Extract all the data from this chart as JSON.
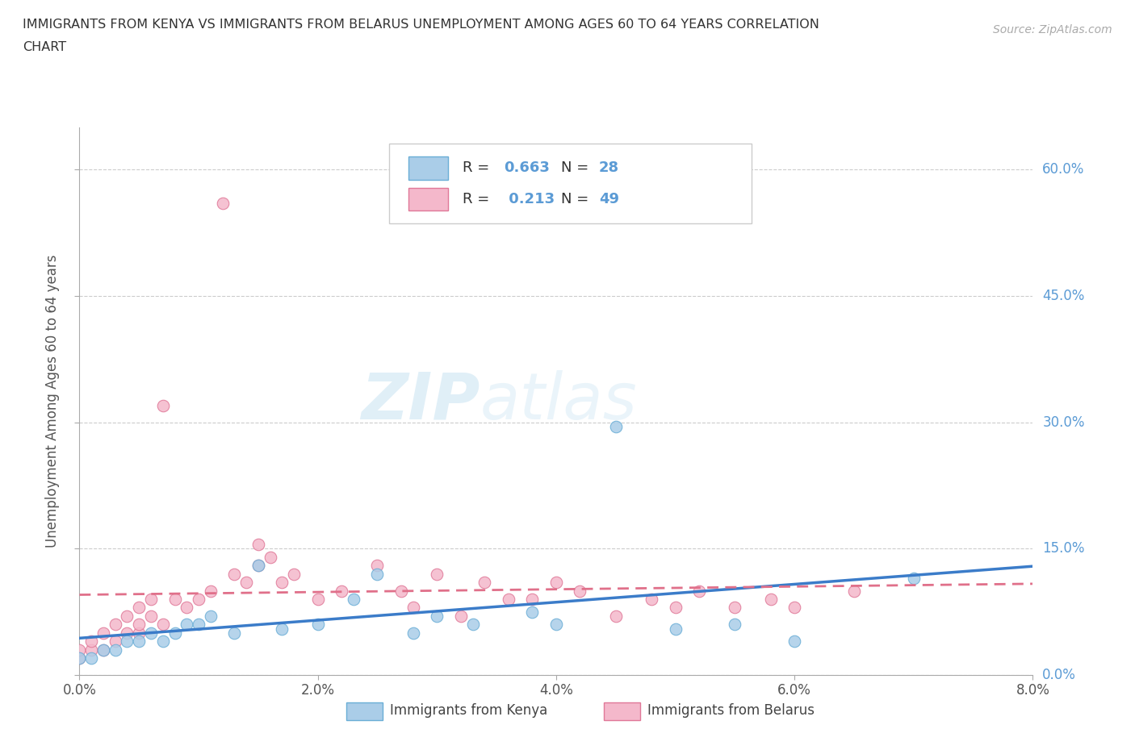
{
  "title_line1": "IMMIGRANTS FROM KENYA VS IMMIGRANTS FROM BELARUS UNEMPLOYMENT AMONG AGES 60 TO 64 YEARS CORRELATION",
  "title_line2": "CHART",
  "source": "Source: ZipAtlas.com",
  "ylabel": "Unemployment Among Ages 60 to 64 years",
  "xlim": [
    0.0,
    0.08
  ],
  "ylim": [
    0.0,
    0.65
  ],
  "yticks": [
    0.0,
    0.15,
    0.3,
    0.45,
    0.6
  ],
  "ytick_labels": [
    "0.0%",
    "15.0%",
    "30.0%",
    "45.0%",
    "60.0%"
  ],
  "xticks": [
    0.0,
    0.02,
    0.04,
    0.06,
    0.08
  ],
  "xtick_labels": [
    "0.0%",
    "2.0%",
    "4.0%",
    "6.0%",
    "8.0%"
  ],
  "kenya_color": "#aacde8",
  "kenya_edge": "#6aaed6",
  "belarus_color": "#f4b8cb",
  "belarus_edge": "#e07898",
  "kenya_trend_color": "#3b7cc9",
  "belarus_trend_color": "#e0708a",
  "kenya_R": "0.663",
  "kenya_N": "28",
  "belarus_R": "0.213",
  "belarus_N": "49",
  "legend_label_kenya": "Immigrants from Kenya",
  "legend_label_belarus": "Immigrants from Belarus",
  "watermark_zip": "ZIP",
  "watermark_atlas": "atlas",
  "kenya_x": [
    0.0,
    0.001,
    0.002,
    0.003,
    0.004,
    0.005,
    0.006,
    0.007,
    0.008,
    0.009,
    0.01,
    0.011,
    0.013,
    0.015,
    0.017,
    0.02,
    0.023,
    0.025,
    0.028,
    0.03,
    0.033,
    0.038,
    0.04,
    0.045,
    0.05,
    0.055,
    0.06,
    0.07
  ],
  "kenya_y": [
    0.02,
    0.02,
    0.03,
    0.03,
    0.04,
    0.04,
    0.05,
    0.04,
    0.05,
    0.06,
    0.06,
    0.07,
    0.05,
    0.13,
    0.055,
    0.06,
    0.09,
    0.12,
    0.05,
    0.07,
    0.06,
    0.075,
    0.06,
    0.295,
    0.055,
    0.06,
    0.04,
    0.115
  ],
  "belarus_x": [
    0.0,
    0.0,
    0.001,
    0.001,
    0.002,
    0.002,
    0.003,
    0.003,
    0.004,
    0.004,
    0.005,
    0.005,
    0.005,
    0.006,
    0.006,
    0.007,
    0.007,
    0.008,
    0.009,
    0.01,
    0.011,
    0.012,
    0.013,
    0.014,
    0.015,
    0.015,
    0.016,
    0.017,
    0.018,
    0.02,
    0.022,
    0.025,
    0.027,
    0.028,
    0.03,
    0.032,
    0.034,
    0.036,
    0.038,
    0.04,
    0.042,
    0.045,
    0.048,
    0.05,
    0.052,
    0.055,
    0.058,
    0.06,
    0.065
  ],
  "belarus_y": [
    0.02,
    0.03,
    0.03,
    0.04,
    0.03,
    0.05,
    0.04,
    0.06,
    0.05,
    0.07,
    0.05,
    0.06,
    0.08,
    0.07,
    0.09,
    0.06,
    0.32,
    0.09,
    0.08,
    0.09,
    0.1,
    0.56,
    0.12,
    0.11,
    0.13,
    0.155,
    0.14,
    0.11,
    0.12,
    0.09,
    0.1,
    0.13,
    0.1,
    0.08,
    0.12,
    0.07,
    0.11,
    0.09,
    0.09,
    0.11,
    0.1,
    0.07,
    0.09,
    0.08,
    0.1,
    0.08,
    0.09,
    0.08,
    0.1
  ]
}
